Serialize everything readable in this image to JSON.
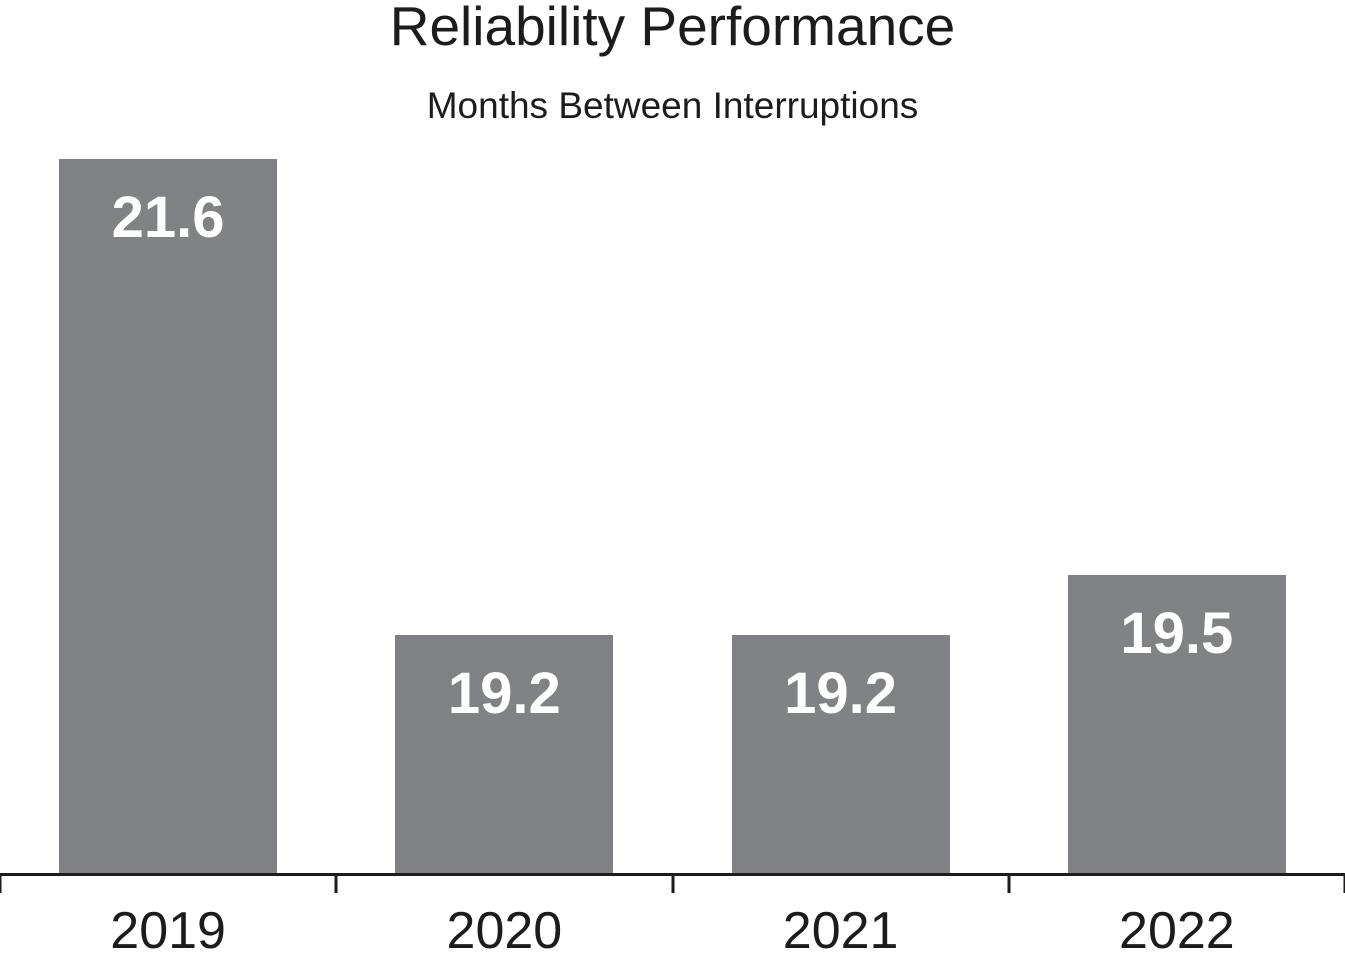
{
  "chart_data": {
    "type": "bar",
    "title": "Reliability Performance",
    "subtitle": "Months Between Interruptions",
    "categories": [
      "2019",
      "2020",
      "2021",
      "2022"
    ],
    "values": [
      21.6,
      19.2,
      19.2,
      19.5
    ],
    "value_labels": [
      "21.6",
      "19.2",
      "19.2",
      "19.5"
    ],
    "xlabel": "",
    "ylabel": "",
    "ylim": [
      18,
      22.4
    ],
    "grid": false,
    "legend": false,
    "y_axis_visible": false,
    "bar_color": "#808285",
    "value_label_color": "#ffffff",
    "axis_color": "#1d1b1b",
    "text_color": "#1d1b1b",
    "background_color": "#ffffff"
  }
}
